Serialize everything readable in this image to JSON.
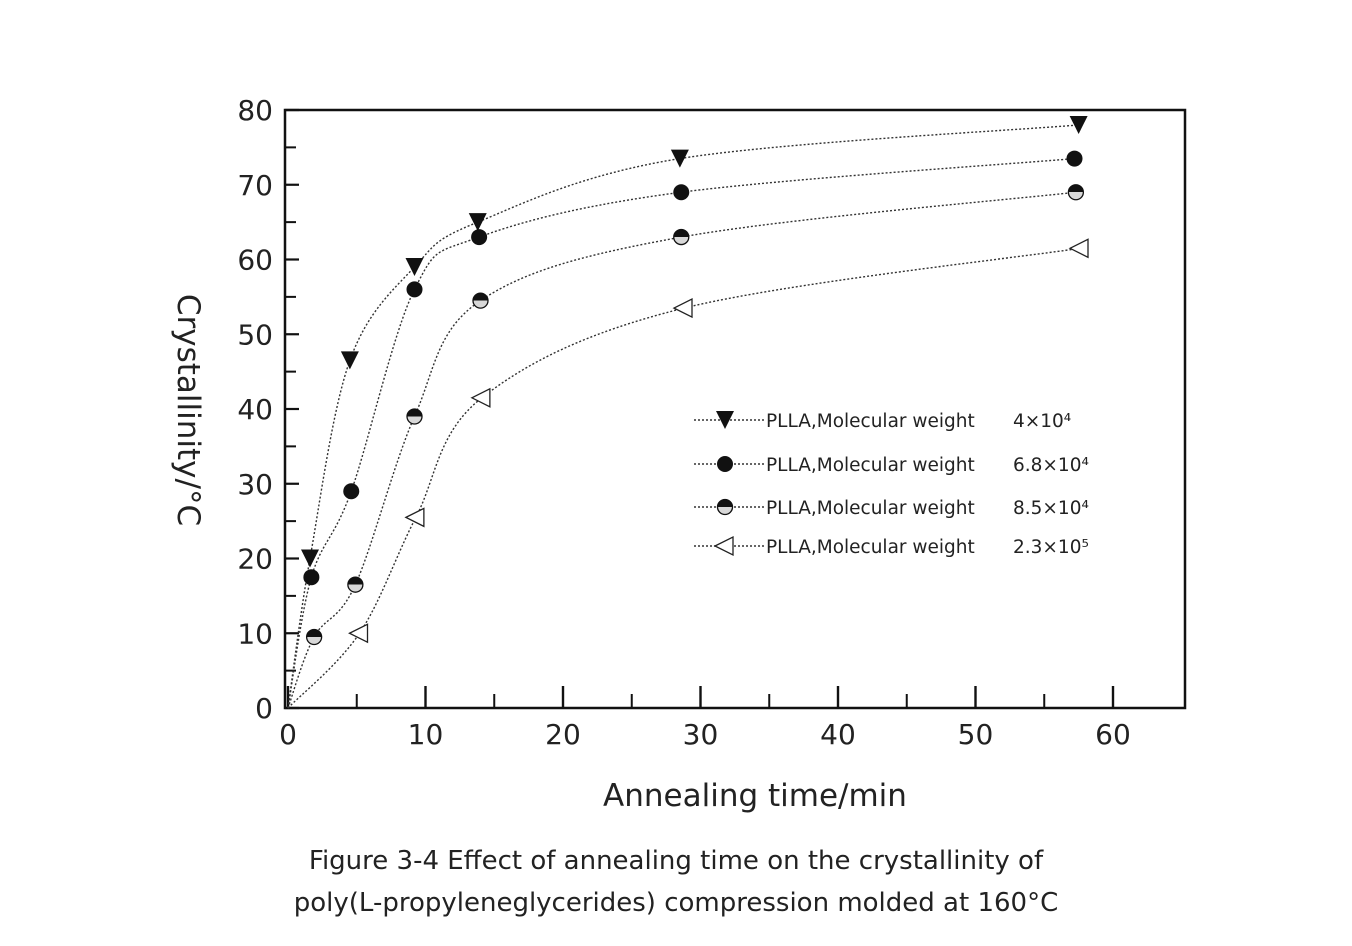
{
  "chart_data": {
    "type": "line",
    "xlabel": "Annealing time/min",
    "ylabel": "Crystallinity/°C",
    "xlim": [
      0,
      65
    ],
    "ylim": [
      0,
      80
    ],
    "xticks": [
      0,
      10,
      20,
      30,
      40,
      50,
      60
    ],
    "yticks": [
      0,
      10,
      20,
      30,
      40,
      50,
      60,
      70,
      80
    ],
    "grid": false,
    "legend_position": "center-right",
    "series": [
      {
        "name": "PLLA,Molecular weight",
        "mw": "4×10⁴",
        "marker": "filled-down-triangle",
        "x": [
          0,
          1.6,
          4.5,
          9.2,
          13.8,
          28.5,
          57.5
        ],
        "y": [
          0,
          20,
          46.5,
          59,
          65,
          73.5,
          78
        ]
      },
      {
        "name": "PLLA,Molecular weight",
        "mw": "6.8×10⁴",
        "marker": "filled-circle",
        "x": [
          0,
          1.7,
          4.6,
          9.2,
          13.9,
          28.6,
          57.2
        ],
        "y": [
          0,
          17.5,
          29,
          56,
          63,
          69,
          73.5
        ]
      },
      {
        "name": "PLLA,Molecular weight",
        "mw": "8.5×10⁴",
        "marker": "half-filled-circle",
        "x": [
          0,
          1.9,
          4.9,
          9.2,
          14.0,
          28.6,
          57.3
        ],
        "y": [
          0,
          9.5,
          16.5,
          39,
          54.5,
          63,
          69
        ]
      },
      {
        "name": "PLLA,Molecular weight",
        "mw": "2.3×10⁵",
        "marker": "open-left-triangle",
        "x": [
          0,
          5.2,
          9.3,
          14.1,
          28.8,
          57.6
        ],
        "y": [
          0,
          10,
          25.5,
          41.5,
          53.5,
          61.5
        ]
      }
    ]
  },
  "caption": {
    "line1": "Figure 3-4 Effect of annealing time on the crystallinity of",
    "line2": "poly(L-propyleneglycerides) compression molded at 160°C"
  }
}
